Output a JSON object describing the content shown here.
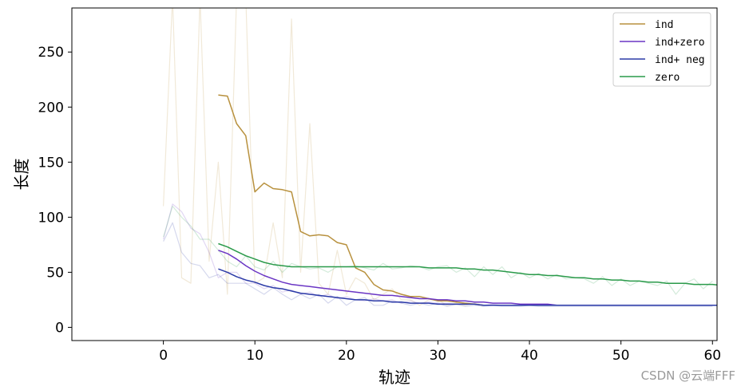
{
  "chart_data": {
    "type": "line",
    "xlabel": "轨迹",
    "ylabel": "长度",
    "xlim": [
      -10,
      60.5
    ],
    "ylim": [
      -12,
      290
    ],
    "xticks": [
      0,
      10,
      20,
      30,
      40,
      50,
      60
    ],
    "yticks": [
      0,
      50,
      100,
      150,
      200,
      250
    ],
    "tick_labels_x": [
      "0",
      "10",
      "20",
      "30",
      "40",
      "50",
      "60"
    ],
    "tick_labels_y": [
      "0",
      "50",
      "100",
      "150",
      "200",
      "250"
    ],
    "legend_position": "top-right",
    "grid": false,
    "colors": {
      "ind": "#b8913e",
      "ind_zero": "#6a35c4",
      "ind_neg": "#2b3aa7",
      "zero": "#2a9a4a"
    },
    "series": [
      {
        "name": "ind",
        "kind": "raw",
        "color": "#b8913e",
        "x": [
          0,
          1,
          2,
          3,
          4,
          5,
          6,
          7,
          8,
          9,
          10,
          11,
          12,
          13,
          14,
          15,
          16,
          17,
          18,
          19,
          20,
          21,
          22,
          23,
          24,
          25,
          26,
          27,
          28,
          29,
          30,
          31,
          32,
          33,
          34,
          35,
          36,
          37,
          38,
          39,
          40,
          41,
          42,
          43,
          44,
          45,
          46,
          47,
          48,
          49,
          50,
          51,
          52,
          53,
          54,
          55,
          56,
          57,
          58,
          59,
          60
        ],
        "values": [
          110,
          300,
          45,
          40,
          300,
          60,
          150,
          30,
          300,
          300,
          40,
          45,
          95,
          45,
          280,
          50,
          185,
          40,
          30,
          70,
          30,
          45,
          40,
          25,
          30,
          35,
          25,
          25,
          20,
          25,
          25,
          20,
          22,
          20,
          22,
          20,
          20,
          20,
          20,
          20,
          20,
          20,
          20,
          20,
          20,
          20,
          20,
          20,
          20,
          20,
          20,
          20,
          20,
          20,
          20,
          20,
          20,
          20,
          20,
          20,
          20
        ]
      },
      {
        "name": "ind+zero",
        "kind": "raw",
        "color": "#6a35c4",
        "x": [
          0,
          1,
          2,
          3,
          4,
          5,
          6,
          7,
          8,
          9,
          10,
          11,
          12,
          13,
          14,
          15,
          16,
          17,
          18,
          19,
          20,
          21,
          22,
          23,
          24,
          25,
          26,
          27,
          28,
          29,
          30,
          31,
          32,
          33,
          34,
          35,
          36,
          37,
          38,
          39,
          40,
          41,
          42,
          43,
          44,
          45,
          46,
          47,
          48,
          49,
          50,
          51,
          52,
          53,
          54,
          55,
          56,
          57,
          58,
          59,
          60
        ],
        "values": [
          80,
          112,
          105,
          90,
          85,
          68,
          45,
          50,
          50,
          40,
          40,
          35,
          38,
          32,
          34,
          30,
          32,
          28,
          30,
          26,
          28,
          25,
          24,
          26,
          24,
          25,
          22,
          24,
          22,
          23,
          22,
          22,
          21,
          22,
          21,
          20,
          21,
          20,
          20,
          20,
          20,
          20,
          20,
          20,
          20,
          20,
          20,
          20,
          20,
          20,
          20,
          20,
          20,
          20,
          20,
          20,
          20,
          20,
          20,
          20,
          20
        ]
      },
      {
        "name": "ind+ neg",
        "kind": "raw",
        "color": "#2b3aa7",
        "x": [
          0,
          1,
          2,
          3,
          4,
          5,
          6,
          7,
          8,
          9,
          10,
          11,
          12,
          13,
          14,
          15,
          16,
          17,
          18,
          19,
          20,
          21,
          22,
          23,
          24,
          25,
          26,
          27,
          28,
          29,
          30,
          31,
          32,
          33,
          34,
          35,
          36,
          37,
          38,
          39,
          40,
          41,
          42,
          43,
          44,
          45,
          46,
          47,
          48,
          49,
          50,
          51,
          52,
          53,
          54,
          55,
          56,
          57,
          58,
          59,
          60
        ],
        "values": [
          78,
          95,
          68,
          58,
          56,
          45,
          48,
          40,
          40,
          40,
          35,
          30,
          36,
          30,
          25,
          30,
          26,
          30,
          22,
          28,
          20,
          25,
          27,
          20,
          20,
          24,
          22,
          20,
          22,
          20,
          22,
          19,
          21,
          19,
          20,
          19,
          20,
          19,
          19,
          19,
          20,
          19,
          19,
          19,
          19,
          19,
          19,
          19,
          19,
          19,
          19,
          19,
          19,
          19,
          19,
          19,
          19,
          19,
          19,
          19,
          19
        ]
      },
      {
        "name": "zero",
        "kind": "raw",
        "color": "#2a9a4a",
        "x": [
          0,
          1,
          2,
          3,
          4,
          5,
          6,
          7,
          8,
          9,
          10,
          11,
          12,
          13,
          14,
          15,
          16,
          17,
          18,
          19,
          20,
          21,
          22,
          23,
          24,
          25,
          26,
          27,
          28,
          29,
          30,
          31,
          32,
          33,
          34,
          35,
          36,
          37,
          38,
          39,
          40,
          41,
          42,
          43,
          44,
          45,
          46,
          47,
          48,
          49,
          50,
          51,
          52,
          53,
          54,
          55,
          56,
          57,
          58,
          59,
          60
        ],
        "values": [
          82,
          110,
          100,
          92,
          80,
          80,
          70,
          60,
          55,
          65,
          55,
          52,
          60,
          50,
          58,
          55,
          53,
          54,
          50,
          55,
          55,
          56,
          54,
          52,
          58,
          53,
          54,
          56,
          55,
          52,
          55,
          56,
          50,
          54,
          46,
          55,
          48,
          55,
          45,
          50,
          45,
          49,
          44,
          48,
          44,
          45,
          44,
          40,
          46,
          38,
          44,
          38,
          42,
          40,
          38,
          42,
          30,
          40,
          44,
          35,
          42
        ]
      },
      {
        "name": "ind",
        "kind": "smoothed",
        "color": "#b8913e",
        "x": [
          6,
          7,
          8,
          9,
          10,
          11,
          12,
          13,
          14,
          15,
          16,
          17,
          18,
          19,
          20,
          21,
          22,
          23,
          24,
          25,
          26,
          27,
          28,
          29,
          30,
          31,
          32,
          33,
          34,
          35,
          36,
          37,
          38,
          39,
          40,
          41,
          42,
          43,
          44,
          45,
          46,
          47,
          48,
          49,
          50,
          51,
          52,
          53,
          54,
          55,
          56,
          57,
          58,
          59,
          60,
          61
        ],
        "values": [
          211,
          210,
          185,
          174,
          123,
          131,
          126,
          125,
          123,
          87,
          83,
          84,
          83,
          77,
          75,
          54,
          50,
          39,
          34,
          33,
          30,
          28,
          28,
          26,
          24,
          24,
          23,
          22,
          21,
          20,
          20,
          20,
          20,
          20,
          20,
          20,
          20,
          20,
          20,
          20,
          20,
          20,
          20,
          20,
          20,
          20,
          20,
          20,
          20,
          20,
          20,
          20,
          20,
          20,
          20,
          20
        ]
      },
      {
        "name": "ind+zero",
        "kind": "smoothed",
        "color": "#6a35c4",
        "x": [
          6,
          7,
          8,
          9,
          10,
          11,
          12,
          13,
          14,
          15,
          16,
          17,
          18,
          19,
          20,
          21,
          22,
          23,
          24,
          25,
          26,
          27,
          28,
          29,
          30,
          31,
          32,
          33,
          34,
          35,
          36,
          37,
          38,
          39,
          40,
          41,
          42,
          43,
          44,
          45,
          46,
          47,
          48,
          49,
          50,
          51,
          52,
          53,
          54,
          55,
          56,
          57,
          58,
          59,
          60,
          61
        ],
        "values": [
          70,
          67,
          62,
          56,
          51,
          47,
          44,
          41,
          39,
          38,
          37,
          36,
          35,
          34,
          33,
          32,
          31,
          30,
          29,
          29,
          28,
          27,
          26,
          26,
          25,
          25,
          24,
          24,
          23,
          23,
          22,
          22,
          22,
          21,
          21,
          21,
          21,
          20,
          20,
          20,
          20,
          20,
          20,
          20,
          20,
          20,
          20,
          20,
          20,
          20,
          20,
          20,
          20,
          20,
          20,
          20
        ]
      },
      {
        "name": "ind+ neg",
        "kind": "smoothed",
        "color": "#2b3aa7",
        "x": [
          6,
          7,
          8,
          9,
          10,
          11,
          12,
          13,
          14,
          15,
          16,
          17,
          18,
          19,
          20,
          21,
          22,
          23,
          24,
          25,
          26,
          27,
          28,
          29,
          30,
          31,
          32,
          33,
          34,
          35,
          36,
          37,
          38,
          39,
          40,
          41,
          42,
          43,
          44,
          45,
          46,
          47,
          48,
          49,
          50,
          51,
          52,
          53,
          54,
          55,
          56,
          57,
          58,
          59,
          60,
          61
        ],
        "values": [
          53,
          50,
          46,
          43,
          41,
          38,
          36,
          35,
          33,
          31,
          30,
          29,
          28,
          27,
          26,
          25,
          25,
          24,
          24,
          23,
          23,
          22,
          22,
          22,
          21,
          21,
          21,
          21,
          21,
          20,
          20,
          20,
          20,
          20,
          20,
          20,
          20,
          20,
          20,
          20,
          20,
          20,
          20,
          20,
          20,
          20,
          20,
          20,
          20,
          20,
          20,
          20,
          20,
          20,
          20,
          20
        ]
      },
      {
        "name": "zero",
        "kind": "smoothed",
        "color": "#2a9a4a",
        "x": [
          6,
          7,
          8,
          9,
          10,
          11,
          12,
          13,
          14,
          15,
          16,
          17,
          18,
          19,
          20,
          21,
          22,
          23,
          24,
          25,
          26,
          27,
          28,
          29,
          30,
          31,
          32,
          33,
          34,
          35,
          36,
          37,
          38,
          39,
          40,
          41,
          42,
          43,
          44,
          45,
          46,
          47,
          48,
          49,
          50,
          51,
          52,
          53,
          54,
          55,
          56,
          57,
          58,
          59,
          60,
          61
        ],
        "values": [
          76,
          73,
          69,
          65,
          62,
          59,
          57,
          56,
          55,
          55,
          55,
          55,
          55,
          55,
          55,
          55,
          55,
          55,
          55,
          55,
          55,
          55,
          55,
          54,
          54,
          54,
          54,
          53,
          53,
          52,
          52,
          51,
          50,
          49,
          48,
          48,
          47,
          47,
          46,
          45,
          45,
          44,
          44,
          43,
          43,
          42,
          42,
          41,
          41,
          40,
          40,
          40,
          39,
          39,
          39,
          38
        ]
      }
    ],
    "legend": [
      "ind",
      "ind+zero",
      "ind+ neg",
      "zero"
    ]
  },
  "watermark": "CSDN @云端FFF"
}
